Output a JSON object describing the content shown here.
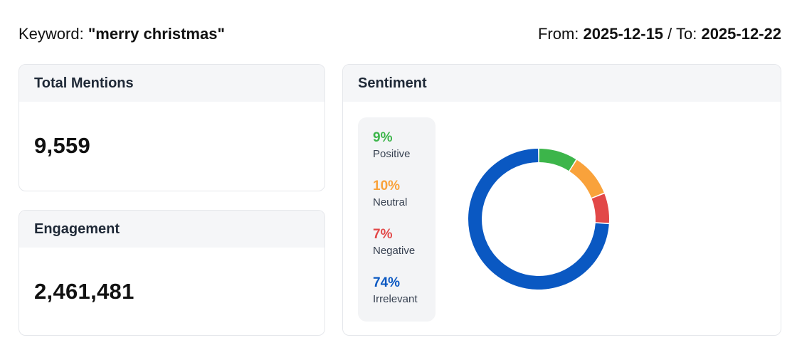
{
  "header": {
    "keyword_prefix": "Keyword: ",
    "keyword_value": "\"merry christmas\"",
    "from_prefix": "From: ",
    "from_date": "2025-12-15",
    "to_prefix": " / To: ",
    "to_date": "2025-12-22"
  },
  "mentions": {
    "title": "Total Mentions",
    "value": "9,559"
  },
  "engagement": {
    "title": "Engagement",
    "value": "2,461,481"
  },
  "sentiment": {
    "title": "Sentiment",
    "items": [
      {
        "pct": "9%",
        "label": "Positive",
        "value": 9,
        "color": "#3cb54a"
      },
      {
        "pct": "10%",
        "label": "Neutral",
        "value": 10,
        "color": "#f9a23b"
      },
      {
        "pct": "7%",
        "label": "Negative",
        "value": 7,
        "color": "#e24848"
      },
      {
        "pct": "74%",
        "label": "Irrelevant",
        "value": 74,
        "color": "#0a58c2"
      }
    ]
  },
  "chart_data": {
    "type": "pie",
    "title": "Sentiment",
    "categories": [
      "Positive",
      "Neutral",
      "Negative",
      "Irrelevant"
    ],
    "values": [
      9,
      10,
      7,
      74
    ],
    "colors": [
      "#3cb54a",
      "#f9a23b",
      "#e24848",
      "#0a58c2"
    ],
    "donut": true
  }
}
